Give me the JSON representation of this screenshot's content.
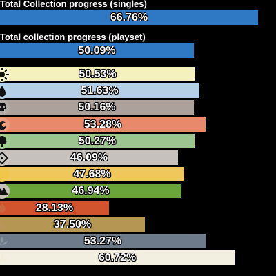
{
  "singles": {
    "label": "Total Collection progress (singles)",
    "value": "66.76%",
    "fraction": 0.6676,
    "color": "#2f78c4"
  },
  "playset": {
    "label": "Total collection progress (playset)",
    "value": "50.09%",
    "fraction": 0.5009,
    "color": "#2f78c4"
  },
  "categories": [
    {
      "icon": "sun-white-mana-icon",
      "value": "50.53%",
      "fraction": 0.5053,
      "color": "#f5f1bf"
    },
    {
      "icon": "water-drop-blue-mana-icon",
      "value": "51.63%",
      "fraction": 0.5163,
      "color": "#b4cfe6"
    },
    {
      "icon": "skull-black-mana-icon",
      "value": "50.16%",
      "fraction": 0.5016,
      "color": "#aca29b"
    },
    {
      "icon": "fireball-red-mana-icon",
      "value": "53.28%",
      "fraction": 0.5328,
      "color": "#e7896a"
    },
    {
      "icon": "tree-green-mana-icon",
      "value": "50.27%",
      "fraction": 0.5027,
      "color": "#9dc58f"
    },
    {
      "icon": "diamond-colorless-icon",
      "value": "46.09%",
      "fraction": 0.4609,
      "color": "#c6c1bc"
    },
    {
      "icon": "gold-multicolor-icon",
      "value": "47.68%",
      "fraction": 0.4768,
      "color": "#f0c75a"
    },
    {
      "icon": "mountain-land-icon",
      "value": "46.94%",
      "fraction": 0.4694,
      "color": "#6aa53c"
    },
    {
      "icon": "flame-artifact-icon",
      "value": "28.13%",
      "fraction": 0.2813,
      "color": "#d2542f"
    },
    {
      "icon": "hand-gold-icon",
      "value": "37.50%",
      "fraction": 0.375,
      "color": "#b59652"
    },
    {
      "icon": "lotus-slate-icon",
      "value": "53.27%",
      "fraction": 0.5327,
      "color": "#6e7b8a"
    },
    {
      "icon": "lotus-cream-icon",
      "value": "60.72%",
      "fraction": 0.6072,
      "color": "#f3efe0"
    }
  ]
}
